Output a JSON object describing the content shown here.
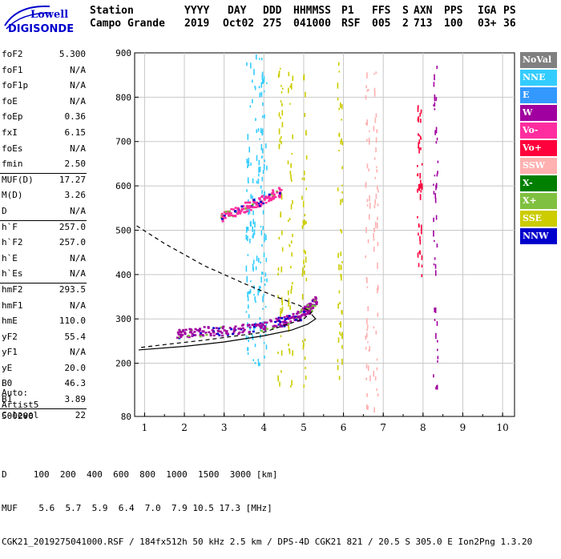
{
  "logo": {
    "brand": "Lowell",
    "product": "DIGISONDE"
  },
  "header": {
    "labels": [
      "Station",
      "YYYY",
      "DAY",
      "DDD",
      "HHMMSS",
      "P1",
      "FFS",
      "S",
      "AXN",
      "PPS",
      "IGA",
      "PS"
    ],
    "values": [
      "Campo Grande",
      "2019",
      "Oct02",
      "275",
      "041000",
      "RSF",
      "005",
      "2",
      "713",
      "100",
      "03+",
      "36"
    ]
  },
  "params": [
    {
      "name": "foF2",
      "value": "5.300"
    },
    {
      "name": "foF1",
      "value": "N/A"
    },
    {
      "name": "foF1p",
      "value": "N/A"
    },
    {
      "name": "foE",
      "value": "N/A"
    },
    {
      "name": "foEp",
      "value": "0.36"
    },
    {
      "name": "fxI",
      "value": "6.15"
    },
    {
      "name": "foEs",
      "value": "N/A"
    },
    {
      "name": "fmin",
      "value": "2.50"
    },
    {
      "name": "MUF(D)",
      "value": "17.27"
    },
    {
      "name": "M(D)",
      "value": "3.26"
    },
    {
      "name": "D",
      "value": "N/A"
    },
    {
      "name": "h`F",
      "value": "257.0"
    },
    {
      "name": "h`F2",
      "value": "257.0"
    },
    {
      "name": "h`E",
      "value": "N/A"
    },
    {
      "name": "h`Es",
      "value": "N/A"
    },
    {
      "name": "hmF2",
      "value": "293.5"
    },
    {
      "name": "hmF1",
      "value": "N/A"
    },
    {
      "name": "hmE",
      "value": "110.0"
    },
    {
      "name": "yF2",
      "value": "55.4"
    },
    {
      "name": "yF1",
      "value": "N/A"
    },
    {
      "name": "yE",
      "value": "20.0"
    },
    {
      "name": "B0",
      "value": "46.3"
    },
    {
      "name": "B1",
      "value": "3.89"
    },
    {
      "name": "C-level",
      "value": "22"
    }
  ],
  "auto": {
    "line1": "Auto:",
    "line2": "Artist5",
    "line3": "500200"
  },
  "legend": [
    {
      "label": "NoVal",
      "color": "#808080"
    },
    {
      "label": "NNE",
      "color": "#33ccff"
    },
    {
      "label": "E",
      "color": "#3399ff"
    },
    {
      "label": "W",
      "color": "#a0009f"
    },
    {
      "label": "Vo-",
      "color": "#ff2d9f"
    },
    {
      "label": "Vo+",
      "color": "#ff003c"
    },
    {
      "label": "SSW",
      "color": "#ffb0b0"
    },
    {
      "label": "X-",
      "color": "#007f00"
    },
    {
      "label": "X+",
      "color": "#80c040"
    },
    {
      "label": "SSE",
      "color": "#cccc00"
    },
    {
      "label": "NNW",
      "color": "#0000cc"
    }
  ],
  "chart_data": {
    "type": "scatter",
    "xlabel": "",
    "ylabel": "",
    "xlim": [
      0.75,
      10.3
    ],
    "ylim": [
      80,
      900
    ],
    "xticks": [
      "1",
      "2",
      "3",
      "4",
      "5",
      "6",
      "7",
      "8",
      "9",
      "10"
    ],
    "yticks": [
      "80",
      "200",
      "300",
      "400",
      "500",
      "600",
      "700",
      "800",
      "900"
    ],
    "grid": true,
    "series": [
      {
        "name": "W",
        "trace_f": [
          1.8,
          2.3,
          3.0,
          3.8,
          4.4,
          4.8,
          5.1,
          5.3
        ],
        "trace_h": [
          268,
          272,
          276,
          283,
          295,
          305,
          325,
          345
        ]
      },
      {
        "name": "Vo-",
        "trace_f": [
          2.9,
          3.3,
          3.7,
          4.1,
          4.4
        ],
        "trace_h": [
          530,
          545,
          560,
          575,
          590
        ]
      },
      {
        "name": "NNE",
        "columns_f": [
          3.6,
          3.75,
          3.9,
          4.0
        ],
        "range_h": [
          200,
          900
        ]
      },
      {
        "name": "SSE",
        "columns_f": [
          4.4,
          4.65,
          5.0,
          5.9
        ],
        "range_h": [
          150,
          880
        ]
      },
      {
        "name": "SSW",
        "columns_f": [
          6.6,
          6.8
        ],
        "range_h": [
          100,
          860
        ]
      },
      {
        "name": "Vo+",
        "columns_f": [
          7.9
        ],
        "range_h": [
          400,
          790
        ]
      },
      {
        "name": "W",
        "columns_f": [
          8.3
        ],
        "range_h": [
          90,
          880
        ]
      }
    ],
    "profile": {
      "f": [
        0.85,
        2.0,
        3.0,
        4.0,
        4.7,
        5.1,
        5.3,
        5.2
      ],
      "h": [
        230,
        238,
        248,
        262,
        275,
        288,
        300,
        310
      ]
    },
    "model_curve": {
      "f": [
        0.8,
        1.5,
        2.5,
        3.5,
        4.3,
        4.9,
        5.2,
        5.0,
        4.0,
        2.5,
        1.5,
        0.85
      ],
      "h": [
        510,
        470,
        420,
        380,
        350,
        330,
        315,
        300,
        270,
        252,
        242,
        235
      ]
    }
  },
  "footer": {
    "line1": "D     100  200  400  600  800  1000  1500  3000 [km]",
    "line2": "MUF    5.6  5.7  5.9  6.4  7.0  7.9 10.5 17.3 [MHz]",
    "line3": "CGK21_2019275041000.RSF / 184fx512h 50 kHz 2.5 km / DPS-4D CGK21 821 / 20.5 S 305.0 E Ion2Png 1.3.20"
  }
}
